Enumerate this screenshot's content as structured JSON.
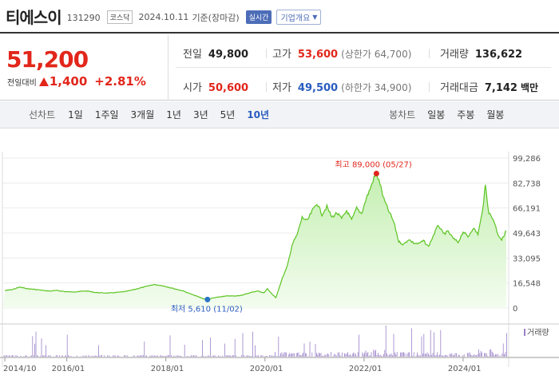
{
  "header": {
    "name": "티에스이",
    "code": "131290",
    "market": "코스닥",
    "date": "2024.10.11",
    "basis": "기준(장마감)",
    "realtime": "실시간",
    "company_info": "기업개요"
  },
  "price": {
    "current": "51,200",
    "change_label": "전일대비",
    "change": "1,400",
    "change_pct": "+2.81%",
    "prev_label": "전일",
    "prev": "49,800",
    "high_label": "고가",
    "high": "53,600",
    "upper_limit": "(상한가 64,700)",
    "volume_label": "거래량",
    "volume": "136,622",
    "open_label": "시가",
    "open": "50,600",
    "low_label": "저가",
    "low": "49,500",
    "lower_limit": "(하한가 34,900)",
    "amount_label": "거래대금",
    "amount": "7,142",
    "amount_unit": "백만"
  },
  "toolbar": {
    "line_label": "선차트",
    "periods": [
      "1일",
      "1주일",
      "3개월",
      "1년",
      "3년",
      "5년",
      "10년"
    ],
    "active": "10년",
    "candle_label": "봉차트",
    "candle_periods": [
      "일봉",
      "주봉",
      "월봉"
    ]
  },
  "colors": {
    "up": "#e2261b",
    "down": "#2a5cbf",
    "line": "#5cc422",
    "fill": "#d6f5c9",
    "volume": "#9b82c9"
  },
  "chart_data": {
    "type": "area",
    "y_ticks": [
      "99,286",
      "82,738",
      "66,191",
      "49,643",
      "33,095",
      "16,548",
      "0"
    ],
    "ylim": [
      0,
      99286
    ],
    "x_ticks": [
      "2014/10",
      "2016/01",
      "2018/01",
      "2020/01",
      "2022/01",
      "2024/01"
    ],
    "high_annotation": "최고 89,000 (05/27)",
    "low_annotation": "최저 5,610 (11/02)",
    "volume_label": "거래량",
    "series": [
      {
        "values": [
          [
            2014.75,
            11500
          ],
          [
            2014.9,
            12200
          ],
          [
            2015.05,
            13800
          ],
          [
            2015.2,
            12800
          ],
          [
            2015.35,
            12300
          ],
          [
            2015.5,
            11700
          ],
          [
            2015.65,
            11200
          ],
          [
            2015.8,
            11600
          ],
          [
            2015.95,
            10900
          ],
          [
            2016.1,
            10600
          ],
          [
            2016.25,
            10900
          ],
          [
            2016.4,
            11300
          ],
          [
            2016.55,
            10400
          ],
          [
            2016.7,
            10000
          ],
          [
            2016.85,
            9900
          ],
          [
            2017.0,
            10300
          ],
          [
            2017.15,
            10700
          ],
          [
            2017.3,
            11700
          ],
          [
            2017.45,
            13000
          ],
          [
            2017.6,
            14200
          ],
          [
            2017.75,
            15500
          ],
          [
            2017.9,
            15000
          ],
          [
            2018.05,
            13800
          ],
          [
            2018.2,
            12500
          ],
          [
            2018.35,
            11300
          ],
          [
            2018.5,
            9300
          ],
          [
            2018.65,
            7500
          ],
          [
            2018.75,
            6200
          ],
          [
            2018.84,
            5610
          ],
          [
            2018.95,
            6600
          ],
          [
            2019.1,
            7400
          ],
          [
            2019.25,
            8000
          ],
          [
            2019.4,
            7900
          ],
          [
            2019.55,
            8600
          ],
          [
            2019.7,
            10100
          ],
          [
            2019.85,
            11300
          ],
          [
            2019.98,
            10000
          ],
          [
            2020.05,
            12800
          ],
          [
            2020.15,
            8900
          ],
          [
            2020.22,
            6800
          ],
          [
            2020.35,
            19600
          ],
          [
            2020.45,
            27500
          ],
          [
            2020.55,
            42000
          ],
          [
            2020.65,
            48500
          ],
          [
            2020.75,
            60000
          ],
          [
            2020.85,
            57500
          ],
          [
            2020.95,
            64000
          ],
          [
            2021.05,
            69500
          ],
          [
            2021.15,
            62000
          ],
          [
            2021.25,
            67000
          ],
          [
            2021.35,
            60000
          ],
          [
            2021.45,
            63000
          ],
          [
            2021.55,
            59000
          ],
          [
            2021.65,
            64500
          ],
          [
            2021.75,
            58000
          ],
          [
            2021.85,
            66000
          ],
          [
            2021.95,
            62500
          ],
          [
            2022.05,
            73000
          ],
          [
            2022.12,
            78500
          ],
          [
            2022.2,
            86000
          ],
          [
            2022.25,
            89000
          ],
          [
            2022.32,
            82500
          ],
          [
            2022.4,
            72000
          ],
          [
            2022.5,
            64000
          ],
          [
            2022.6,
            57000
          ],
          [
            2022.7,
            44000
          ],
          [
            2022.8,
            42000
          ],
          [
            2022.9,
            45500
          ],
          [
            2023.0,
            43000
          ],
          [
            2023.1,
            42500
          ],
          [
            2023.2,
            44500
          ],
          [
            2023.3,
            40500
          ],
          [
            2023.4,
            48000
          ],
          [
            2023.5,
            55000
          ],
          [
            2023.6,
            49000
          ],
          [
            2023.7,
            50500
          ],
          [
            2023.8,
            46000
          ],
          [
            2023.9,
            43500
          ],
          [
            2024.0,
            50500
          ],
          [
            2024.1,
            47000
          ],
          [
            2024.2,
            53000
          ],
          [
            2024.3,
            49000
          ],
          [
            2024.38,
            62000
          ],
          [
            2024.45,
            81000
          ],
          [
            2024.52,
            63000
          ],
          [
            2024.62,
            58000
          ],
          [
            2024.7,
            49000
          ],
          [
            2024.78,
            45000
          ],
          [
            2024.87,
            51200
          ]
        ]
      }
    ]
  }
}
